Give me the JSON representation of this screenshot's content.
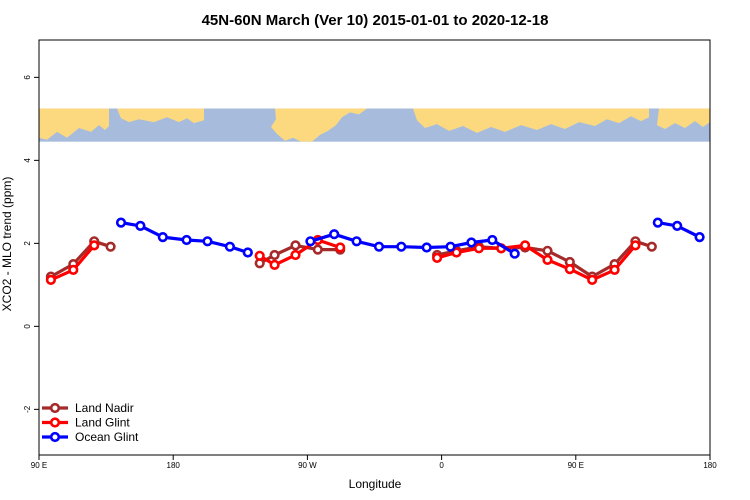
{
  "chart_data": {
    "type": "line",
    "title": "45N-60N March (Ver 10)   2015-01-01 to 2020-12-18",
    "xlabel": "Longitude",
    "ylabel": "XCO2 - MLO trend (ppm)",
    "xlim": [
      90,
      540
    ],
    "ylim": [
      -3.1,
      6.9
    ],
    "x_ticks": [
      {
        "value": 90,
        "label": "90 E"
      },
      {
        "value": 180,
        "label": "180"
      },
      {
        "value": 270,
        "label": "90 W"
      },
      {
        "value": 360,
        "label": "0"
      },
      {
        "value": 450,
        "label": "90 E"
      },
      {
        "value": 540,
        "label": "180"
      }
    ],
    "y_ticks": [
      {
        "value": -2,
        "label": "-2"
      },
      {
        "value": 0,
        "label": "0"
      },
      {
        "value": 2,
        "label": "2"
      },
      {
        "value": 4,
        "label": "4"
      },
      {
        "value": 6,
        "label": "6"
      }
    ],
    "map_strip": {
      "y_from": 4.45,
      "y_to": 5.25,
      "ocean_color": "#a7bcdc",
      "land_color": "#fcd97e"
    },
    "series": [
      {
        "name": "Land Nadir",
        "color": "#a52a2a",
        "segments": [
          [
            [
              98,
              1.2
            ],
            [
              113,
              1.5
            ],
            [
              127,
              2.05
            ],
            [
              138,
              1.92
            ]
          ],
          [
            [
              238,
              1.52
            ],
            [
              248,
              1.72
            ],
            [
              262,
              1.95
            ],
            [
              277,
              1.85
            ],
            [
              292,
              1.85
            ]
          ],
          [
            [
              357,
              1.72
            ],
            [
              370,
              1.82
            ],
            [
              385,
              1.92
            ],
            [
              400,
              1.88
            ],
            [
              416,
              1.9
            ],
            [
              431,
              1.82
            ],
            [
              446,
              1.55
            ],
            [
              461,
              1.2
            ],
            [
              476,
              1.5
            ],
            [
              490,
              2.05
            ],
            [
              501,
              1.92
            ]
          ]
        ]
      },
      {
        "name": "Land Glint",
        "color": "#ff0000",
        "segments": [
          [
            [
              98,
              1.12
            ],
            [
              113,
              1.36
            ],
            [
              127,
              1.95
            ]
          ],
          [
            [
              238,
              1.7
            ],
            [
              248,
              1.48
            ],
            [
              262,
              1.72
            ],
            [
              277,
              2.08
            ],
            [
              292,
              1.9
            ]
          ],
          [
            [
              357,
              1.65
            ],
            [
              370,
              1.78
            ],
            [
              385,
              1.88
            ],
            [
              400,
              1.88
            ],
            [
              416,
              1.95
            ],
            [
              431,
              1.6
            ],
            [
              446,
              1.38
            ],
            [
              461,
              1.12
            ],
            [
              476,
              1.36
            ],
            [
              490,
              1.95
            ]
          ]
        ]
      },
      {
        "name": "Ocean Glint",
        "color": "#0000ff",
        "segments": [
          [
            [
              145,
              2.5
            ],
            [
              158,
              2.42
            ],
            [
              173,
              2.15
            ],
            [
              189,
              2.08
            ],
            [
              203,
              2.05
            ],
            [
              218,
              1.92
            ],
            [
              230,
              1.78
            ]
          ],
          [
            [
              272,
              2.05
            ],
            [
              288,
              2.22
            ],
            [
              303,
              2.05
            ],
            [
              318,
              1.92
            ],
            [
              333,
              1.92
            ],
            [
              350,
              1.9
            ],
            [
              366,
              1.92
            ],
            [
              380,
              2.02
            ],
            [
              394,
              2.08
            ],
            [
              409,
              1.75
            ]
          ],
          [
            [
              505,
              2.5
            ],
            [
              518,
              2.42
            ],
            [
              533,
              2.15
            ]
          ]
        ]
      }
    ]
  }
}
